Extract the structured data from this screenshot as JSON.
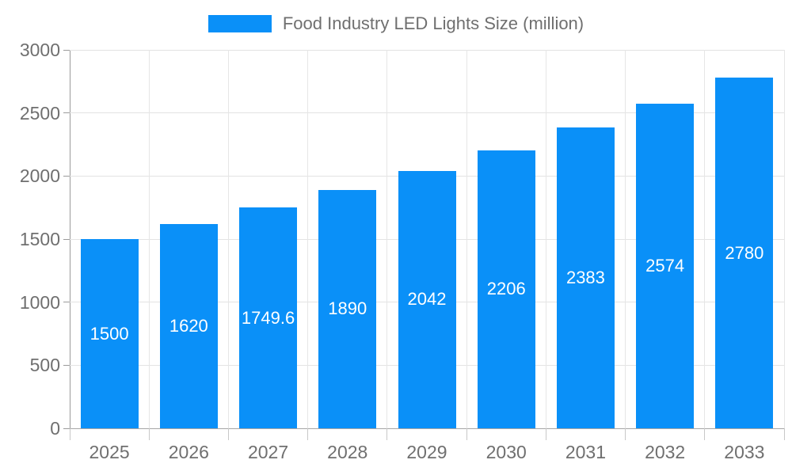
{
  "legend": {
    "label": "Food Industry LED Lights Size (million)"
  },
  "colors": {
    "bar": "#0a90f8",
    "axis_text": "#6f6f6f",
    "value_label": "#ffffff",
    "axis_line": "#9b9b9b",
    "gridline": "#e3e3e3"
  },
  "chart_data": {
    "type": "bar",
    "title": "Food Industry LED Lights Size (million)",
    "categories": [
      "2025",
      "2026",
      "2027",
      "2028",
      "2029",
      "2030",
      "2031",
      "2032",
      "2033"
    ],
    "values": [
      1500,
      1620,
      1749.6,
      1890,
      2042,
      2206,
      2383,
      2574,
      2780
    ],
    "xlabel": "",
    "ylabel": "",
    "ylim": [
      0,
      3000
    ],
    "ytick_step": 500,
    "yticks": [
      "0",
      "500",
      "1000",
      "1500",
      "2000",
      "2500",
      "3000"
    ],
    "grid": true,
    "legend_position": "top",
    "value_labels": "inside-center"
  }
}
